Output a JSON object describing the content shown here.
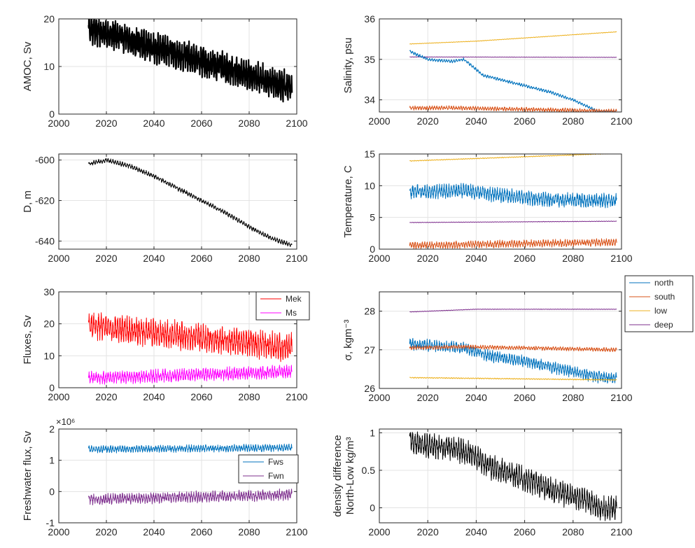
{
  "chart_data": [
    {
      "id": "amoc",
      "type": "line",
      "ylabel": "AMOC, Sv",
      "xlim": [
        2000,
        2100
      ],
      "ylim": [
        0,
        20
      ],
      "xticks": [
        2000,
        2020,
        2040,
        2060,
        2080,
        2100
      ],
      "yticks": [
        0,
        10,
        20
      ],
      "grid": "on",
      "series": [
        {
          "color": "#000000",
          "width": 2.2,
          "x": [
            2012.5,
            2098
          ],
          "y": [
            18.0,
            5.5
          ],
          "amp": 2.5,
          "period": 1.0
        }
      ]
    },
    {
      "id": "salinity",
      "type": "line",
      "ylabel": "Salinity, psu",
      "xlim": [
        2000,
        2100
      ],
      "ylim": [
        33.7,
        36
      ],
      "xticks": [
        2000,
        2020,
        2040,
        2060,
        2080,
        2100
      ],
      "yticks": [
        34,
        35,
        36
      ],
      "grid": "on",
      "series": [
        {
          "color": "#EDB120",
          "x": [
            2012.5,
            2040,
            2098
          ],
          "y": [
            35.38,
            35.45,
            35.68
          ],
          "amp": 0.005,
          "period": 1.0
        },
        {
          "color": "#7E2F8E",
          "x": [
            2012.5,
            2098
          ],
          "y": [
            35.06,
            35.05
          ],
          "amp": 0.004,
          "period": 1.0
        },
        {
          "color": "#0072BD",
          "x": [
            2012.5,
            2020,
            2030,
            2035,
            2043,
            2050,
            2060,
            2070,
            2080,
            2090,
            2098
          ],
          "y": [
            35.2,
            35.0,
            34.95,
            35.0,
            34.6,
            34.5,
            34.35,
            34.2,
            34.0,
            33.72,
            33.72
          ],
          "amp": 0.03,
          "period": 1.0
        },
        {
          "color": "#D95319",
          "x": [
            2012.5,
            2030,
            2098
          ],
          "y": [
            33.8,
            33.8,
            33.72
          ],
          "amp": 0.04,
          "period": 1.0
        }
      ]
    },
    {
      "id": "depth",
      "type": "line",
      "ylabel": "D, m",
      "xlim": [
        2000,
        2100
      ],
      "ylim": [
        -644,
        -597
      ],
      "xticks": [
        2000,
        2020,
        2040,
        2060,
        2080,
        2100
      ],
      "yticks": [
        -640,
        -620,
        -600
      ],
      "grid": "on",
      "series": [
        {
          "color": "#000000",
          "x": [
            2012.5,
            2020,
            2030,
            2040,
            2050,
            2060,
            2070,
            2080,
            2090,
            2098
          ],
          "y": [
            -602,
            -600,
            -603,
            -608,
            -614,
            -620,
            -626,
            -633,
            -639,
            -642
          ],
          "amp": 0.9,
          "period": 1.0
        }
      ]
    },
    {
      "id": "temperature",
      "type": "line",
      "ylabel": "Temperature, C",
      "xlim": [
        2000,
        2100
      ],
      "ylim": [
        0,
        15
      ],
      "xticks": [
        2000,
        2020,
        2040,
        2060,
        2080,
        2100
      ],
      "yticks": [
        0,
        5,
        10,
        15
      ],
      "grid": "on",
      "series": [
        {
          "color": "#EDB120",
          "x": [
            2012.5,
            2098
          ],
          "y": [
            13.9,
            15.1
          ],
          "amp": 0.05,
          "period": 1.0
        },
        {
          "color": "#0072BD",
          "x": [
            2012.5,
            2035,
            2050,
            2070,
            2098
          ],
          "y": [
            9.0,
            9.2,
            8.5,
            7.8,
            7.6
          ],
          "amp": 0.9,
          "period": 1.0
        },
        {
          "color": "#7E2F8E",
          "x": [
            2012.5,
            2098
          ],
          "y": [
            4.2,
            4.4
          ],
          "amp": 0.03,
          "period": 1.0
        },
        {
          "color": "#D95319",
          "x": [
            2012.5,
            2098
          ],
          "y": [
            0.6,
            1.1
          ],
          "amp": 0.45,
          "period": 1.0
        }
      ]
    },
    {
      "id": "fluxes",
      "type": "line",
      "ylabel": "Fluxes, Sv",
      "xlim": [
        2000,
        2100
      ],
      "ylim": [
        0,
        30
      ],
      "xticks": [
        2000,
        2020,
        2040,
        2060,
        2080,
        2100
      ],
      "yticks": [
        0,
        10,
        20,
        30
      ],
      "grid": "on",
      "legend": {
        "position": "top-right",
        "entries": [
          "Mek",
          "Ms"
        ]
      },
      "series": [
        {
          "name": "Mek",
          "color": "#FF0000",
          "x": [
            2012.5,
            2098
          ],
          "y": [
            19.5,
            12.5
          ],
          "amp": 3.5,
          "period": 1.0
        },
        {
          "name": "Ms",
          "color": "#FF00FF",
          "x": [
            2012.5,
            2098
          ],
          "y": [
            3.0,
            5.0
          ],
          "amp": 1.6,
          "period": 1.0
        }
      ]
    },
    {
      "id": "sigma",
      "type": "line",
      "ylabel": "σ, kgm⁻³",
      "xlim": [
        2000,
        2100
      ],
      "ylim": [
        26,
        28.5
      ],
      "xticks": [
        2000,
        2020,
        2040,
        2060,
        2080,
        2100
      ],
      "yticks": [
        26,
        27,
        28
      ],
      "grid": "on",
      "legend": {
        "position": "outside-top-right",
        "entries": [
          "north",
          "south",
          "low",
          "deep"
        ]
      },
      "series": [
        {
          "name": "north",
          "color": "#0072BD",
          "x": [
            2012.5,
            2025,
            2035,
            2045,
            2060,
            2075,
            2090,
            2098
          ],
          "y": [
            27.15,
            27.1,
            27.05,
            26.85,
            26.7,
            26.5,
            26.3,
            26.25
          ],
          "amp": 0.12,
          "period": 1.0
        },
        {
          "name": "south",
          "color": "#D95319",
          "x": [
            2012.5,
            2035,
            2098
          ],
          "y": [
            27.05,
            27.08,
            27.0
          ],
          "amp": 0.04,
          "period": 1.0
        },
        {
          "name": "low",
          "color": "#EDB120",
          "x": [
            2012.5,
            2098
          ],
          "y": [
            26.28,
            26.22
          ],
          "amp": 0.01,
          "period": 1.0
        },
        {
          "name": "deep",
          "color": "#7E2F8E",
          "x": [
            2012.5,
            2040,
            2098
          ],
          "y": [
            27.98,
            28.05,
            28.05
          ],
          "amp": 0.005,
          "period": 1.0
        }
      ]
    },
    {
      "id": "freshwater",
      "type": "line",
      "ylabel": "Freshwater flux, Sv",
      "exponent_label": "×10⁶",
      "xlim": [
        2000,
        2100
      ],
      "ylim": [
        -1,
        2
      ],
      "xticks": [
        2000,
        2020,
        2040,
        2060,
        2080,
        2100
      ],
      "yticks": [
        -1,
        0,
        1,
        2
      ],
      "grid": "on",
      "legend": {
        "position": "right",
        "entries": [
          "Fws",
          "Fwn"
        ]
      },
      "series": [
        {
          "name": "Fws",
          "color": "#0072BD",
          "x": [
            2012.5,
            2098
          ],
          "y": [
            1.35,
            1.4
          ],
          "amp": 0.09,
          "period": 1.0
        },
        {
          "name": "Fwn",
          "color": "#7E2F8E",
          "x": [
            2012.5,
            2098
          ],
          "y": [
            -0.25,
            -0.1
          ],
          "amp": 0.14,
          "period": 1.0
        }
      ]
    },
    {
      "id": "density_diff",
      "type": "line",
      "ylabel": "density difference",
      "ylabel2": "North-Low kg/m³",
      "xlim": [
        2000,
        2100
      ],
      "ylim": [
        -0.2,
        1.05
      ],
      "xticks": [
        2000,
        2020,
        2040,
        2060,
        2080,
        2100
      ],
      "yticks": [
        0,
        0.5,
        1
      ],
      "grid": "on",
      "series": [
        {
          "color": "#000000",
          "x": [
            2012.5,
            2020,
            2030,
            2038,
            2045,
            2055,
            2065,
            2075,
            2085,
            2092,
            2098
          ],
          "y": [
            0.88,
            0.82,
            0.8,
            0.72,
            0.55,
            0.45,
            0.32,
            0.2,
            0.1,
            0.0,
            0.0
          ],
          "amp": 0.13,
          "period": 1.0
        }
      ]
    }
  ]
}
